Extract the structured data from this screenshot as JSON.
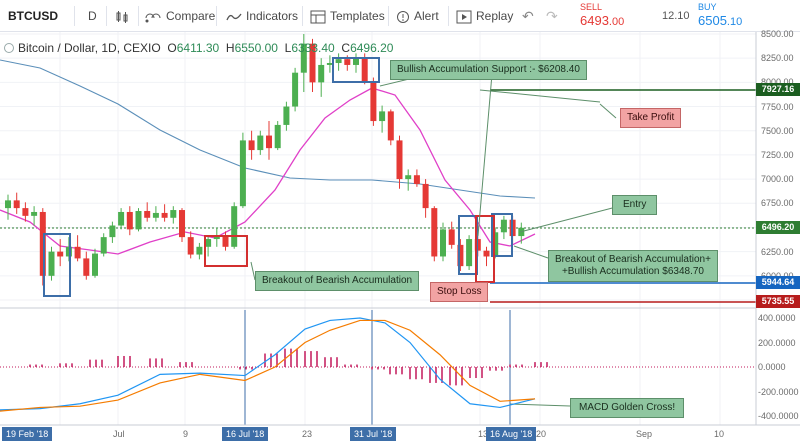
{
  "toolbar": {
    "symbol": "BTCUSD",
    "interval": "D",
    "compare": "Compare",
    "indicators": "Indicators",
    "templates": "Templates",
    "alert": "Alert",
    "replay": "Replay",
    "sell_label": "SELL",
    "sell_price_main": "6493",
    "sell_price_small": ".00",
    "spread": "12.10",
    "buy_label": "BUY",
    "buy_price_main": "6505",
    "buy_price_small": ".10"
  },
  "legend": {
    "title": "Bitcoin / Dollar, 1D, CEXIO",
    "open_label": "O",
    "open": "6411.30",
    "high_label": "H",
    "high": "6550.00",
    "low_label": "L",
    "low": "6333.40",
    "close_label": "C",
    "close": "6496.20"
  },
  "annotations": {
    "support": "Bullish Accumulation Support :- $6208.40",
    "take_profit": "Take Profit",
    "entry": "Entry",
    "breakout_bearish": "Breakout of Bearish Accumulation",
    "stop_loss": "Stop Loss",
    "breakout_line1": "Breakout of Bearish Accumulation+",
    "breakout_line2": "+Bullish Accumulation $6348.70",
    "macd_cross": "MACD Golden Cross!"
  },
  "price_axis": [
    "8500.00",
    "8250.00",
    "8000.00",
    "7750.00",
    "7500.00",
    "7250.00",
    "7000.00",
    "6750.00",
    "6500.00",
    "6250.00",
    "6000.00",
    "5750.00"
  ],
  "price_tags": {
    "take_profit": "7927.16",
    "current": "6496.20",
    "level_low": "5944.64",
    "stop": "5735.55"
  },
  "macd_axis": [
    "400.0000",
    "200.0000",
    "0.0000",
    "-200.0000",
    "-400.0000"
  ],
  "time_axis": {
    "jul": "Jul",
    "nine": "9",
    "twentythree": "23",
    "thirteen": "13",
    "twenty": "20",
    "sep": "Sep",
    "ten": "10"
  },
  "date_tags": {
    "start": "19 Feb '18",
    "jul16": "16 Jul '18",
    "jul31": "31 Jul '18",
    "aug16": "16 Aug '18"
  },
  "colors": {
    "up": "#4caf50",
    "down": "#e53935",
    "ema_pink": "#e040c8",
    "sma_blue": "#5b8fb9",
    "macd_blue": "#2196f3",
    "signal_orange": "#f57c00",
    "hist": "#c2185b",
    "take_profit": "#1b5e20",
    "stop": "#b71c1c",
    "low_level": "#1565c0"
  },
  "chart_data": {
    "type": "candlestick",
    "title": "Bitcoin / Dollar, 1D, CEXIO",
    "ylim": [
      5650,
      8550
    ],
    "levels": {
      "take_profit": 7927.16,
      "current": 6496.2,
      "support_low": 5944.64,
      "stop_loss": 5735.55,
      "support": 6208.4,
      "bullish_accumulation": 6348.7
    },
    "last_bar": {
      "open": 6411.3,
      "high": 6550.0,
      "low": 6333.4,
      "close": 6496.2
    },
    "candles": [
      [
        6700,
        6840,
        6580,
        6780
      ],
      [
        6780,
        6860,
        6640,
        6700
      ],
      [
        6700,
        6760,
        6560,
        6620
      ],
      [
        6620,
        6720,
        6520,
        6660
      ],
      [
        6660,
        6700,
        5900,
        6000
      ],
      [
        6000,
        6300,
        5950,
        6250
      ],
      [
        6250,
        6380,
        6100,
        6200
      ],
      [
        6200,
        6400,
        6150,
        6300
      ],
      [
        6300,
        6420,
        6150,
        6180
      ],
      [
        6180,
        6250,
        5960,
        6000
      ],
      [
        6000,
        6280,
        5980,
        6230
      ],
      [
        6230,
        6440,
        6200,
        6400
      ],
      [
        6400,
        6560,
        6340,
        6520
      ],
      [
        6520,
        6700,
        6480,
        6660
      ],
      [
        6660,
        6720,
        6420,
        6480
      ],
      [
        6480,
        6700,
        6460,
        6670
      ],
      [
        6670,
        6760,
        6560,
        6600
      ],
      [
        6600,
        6720,
        6560,
        6650
      ],
      [
        6650,
        6740,
        6560,
        6600
      ],
      [
        6600,
        6720,
        6540,
        6680
      ],
      [
        6680,
        6700,
        6350,
        6400
      ],
      [
        6400,
        6460,
        6180,
        6220
      ],
      [
        6220,
        6340,
        6170,
        6300
      ],
      [
        6300,
        6420,
        6200,
        6380
      ],
      [
        6380,
        6500,
        6300,
        6420
      ],
      [
        6420,
        6460,
        6260,
        6300
      ],
      [
        6300,
        6760,
        6280,
        6720
      ],
      [
        6720,
        7480,
        6700,
        7400
      ],
      [
        7400,
        7500,
        7200,
        7300
      ],
      [
        7300,
        7500,
        7250,
        7450
      ],
      [
        7450,
        7600,
        7200,
        7320
      ],
      [
        7320,
        7600,
        7300,
        7560
      ],
      [
        7560,
        7800,
        7500,
        7750
      ],
      [
        7750,
        8150,
        7700,
        8100
      ],
      [
        8100,
        8500,
        7900,
        8400
      ],
      [
        8400,
        8450,
        7900,
        8000
      ],
      [
        8000,
        8250,
        7850,
        8180
      ],
      [
        8180,
        8280,
        8100,
        8200
      ],
      [
        8200,
        8300,
        8120,
        8240
      ],
      [
        8240,
        8280,
        8120,
        8180
      ],
      [
        8180,
        8300,
        8100,
        8250
      ],
      [
        8250,
        8300,
        7980,
        8000
      ],
      [
        8000,
        8050,
        7550,
        7600
      ],
      [
        7600,
        7760,
        7480,
        7700
      ],
      [
        7700,
        7720,
        7350,
        7400
      ],
      [
        7400,
        7450,
        6900,
        7000
      ],
      [
        7000,
        7100,
        6880,
        7040
      ],
      [
        7040,
        7100,
        6920,
        6950
      ],
      [
        6950,
        7000,
        6600,
        6700
      ],
      [
        6700,
        6720,
        6150,
        6200
      ],
      [
        6200,
        6550,
        6150,
        6480
      ],
      [
        6480,
        6560,
        6280,
        6320
      ],
      [
        6320,
        6380,
        6050,
        6100
      ],
      [
        6100,
        6420,
        6060,
        6380
      ],
      [
        6380,
        6520,
        6200,
        6260
      ],
      [
        6260,
        6300,
        6100,
        6200
      ],
      [
        6200,
        6500,
        6180,
        6450
      ],
      [
        6450,
        6620,
        6380,
        6580
      ],
      [
        6580,
        6620,
        6340,
        6411
      ],
      [
        6411,
        6550,
        6333,
        6496
      ]
    ]
  }
}
